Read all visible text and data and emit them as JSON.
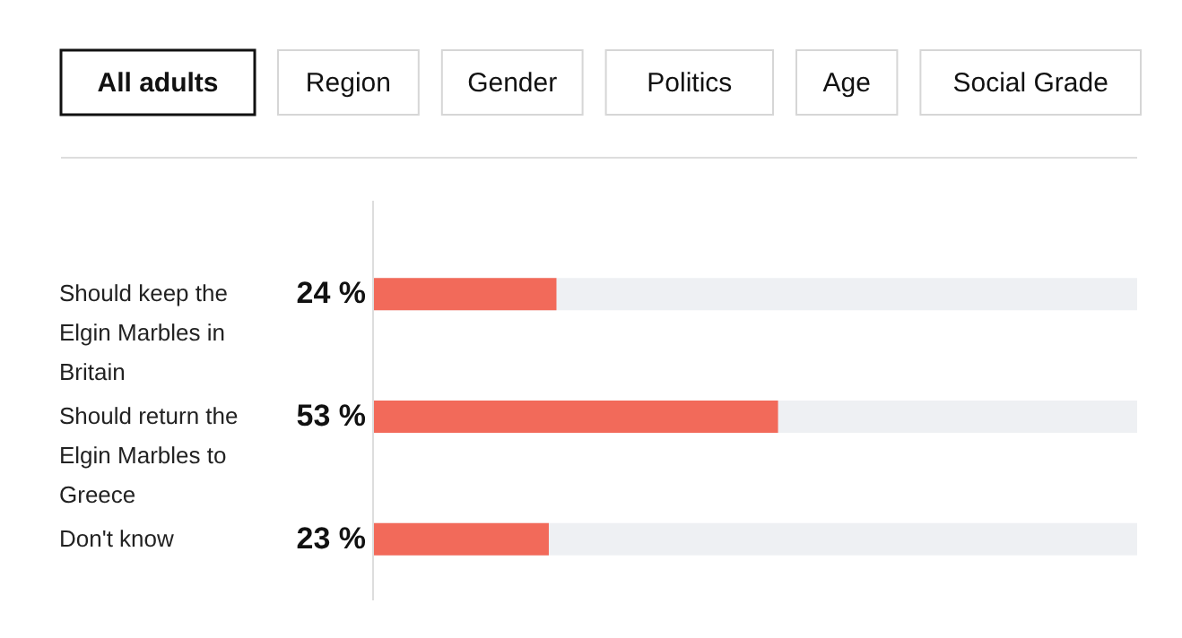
{
  "chart_data": {
    "type": "bar",
    "orientation": "horizontal",
    "categories": [
      "Should keep the Elgin Marbles in Britain",
      "Should return the Elgin Marbles to Greece",
      "Don't know"
    ],
    "values": [
      24,
      53,
      23
    ],
    "color": "#f26a5a",
    "xlim": [
      0,
      100
    ],
    "value_labels": [
      "24 %",
      "53 %",
      "23 %"
    ],
    "annotations": [
      "All adults",
      "Region",
      "Gender",
      "Politics",
      "Age",
      "Social Grade"
    ]
  }
}
